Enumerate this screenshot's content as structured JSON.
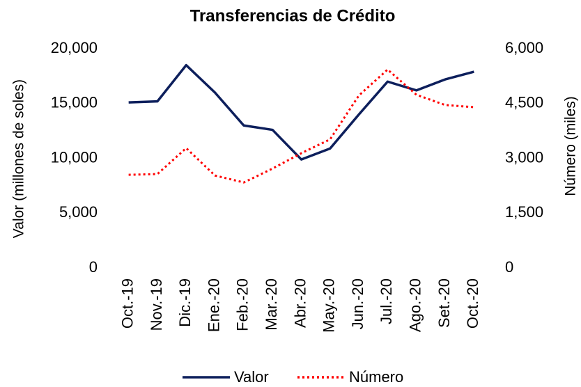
{
  "chart_data": {
    "type": "line",
    "title": "Transferencias de Crédito",
    "y_label": "Valor (millones de soles)",
    "y2_label": "Número (miles)",
    "categories": [
      "Oct.-19",
      "Nov.-19",
      "Dic.-19",
      "Ene.-20",
      "Feb.-20",
      "Mar.-20",
      "Abr.-20",
      "May.-20",
      "Jun.-20",
      "Jul.-20",
      "Ago.-20",
      "Set.-20",
      "Oct.-20"
    ],
    "series": [
      {
        "name": "Valor",
        "color": "#0d1f5c",
        "dash": "solid",
        "values": [
          15100,
          15200,
          18500,
          16000,
          13000,
          12600,
          9900,
          10900,
          14000,
          17000,
          16200,
          17200,
          17900
        ]
      },
      {
        "name": "Número",
        "color": "#ff0000",
        "dash": "dotted",
        "axis": "y2",
        "values": [
          2550,
          2570,
          3280,
          2530,
          2340,
          2720,
          3140,
          3520,
          4720,
          5430,
          4740,
          4460,
          4400
        ]
      }
    ],
    "ylim": [
      0,
      20000
    ],
    "yticks": [
      0,
      {
        "value": 5000,
        "label": "5,000"
      },
      {
        "value": 10000,
        "label": "10,000"
      },
      {
        "value": 15000,
        "label": "15,000"
      },
      {
        "value": 20000,
        "label": "20,000"
      }
    ],
    "y2lim": [
      0,
      6000
    ],
    "y2ticks": [
      0,
      {
        "value": 1500,
        "label": "1,500"
      },
      {
        "value": 3000,
        "label": "3,000"
      },
      {
        "value": 4500,
        "label": "4,500"
      },
      {
        "value": 6000,
        "label": "6,000"
      }
    ],
    "grid": false,
    "legend": "bottom"
  }
}
